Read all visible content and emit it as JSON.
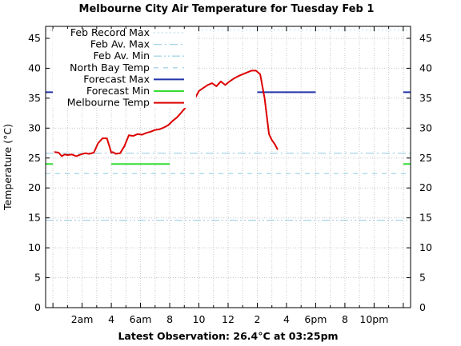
{
  "chart_data": {
    "type": "line",
    "title": "Melbourne City Air Temperature  for Tuesday Feb 1",
    "xlabel": "Latest Observation: 26.4°C at 03:25pm",
    "ylabel": "Temperature (°C)",
    "ylim": [
      0,
      47
    ],
    "xlim": [
      0,
      24
    ],
    "grid": true,
    "legend_position": "top-left",
    "y_ticks": [
      "0",
      "5",
      "10",
      "15",
      "20",
      "25",
      "30",
      "35",
      "40",
      "45"
    ],
    "x_ticks": [
      {
        "hour": 2,
        "label": "2am"
      },
      {
        "hour": 4,
        "label": "4"
      },
      {
        "hour": 6,
        "label": "6am"
      },
      {
        "hour": 8,
        "label": "8"
      },
      {
        "hour": 10,
        "label": "10"
      },
      {
        "hour": 12,
        "label": "12"
      },
      {
        "hour": 14,
        "label": "2"
      },
      {
        "hour": 16,
        "label": "4"
      },
      {
        "hour": 18,
        "label": "6pm"
      },
      {
        "hour": 20,
        "label": "8"
      },
      {
        "hour": 22,
        "label": "10pm"
      }
    ],
    "series": [
      {
        "name": "Feb Record Max",
        "kind": "hline",
        "value": 46.4,
        "color": "#bfe0ec",
        "style": "dotted"
      },
      {
        "name": "Feb Av. Max",
        "kind": "hline",
        "value": 25.8,
        "color": "#a8d4e6",
        "style": "dashdot"
      },
      {
        "name": "Feb Av. Min",
        "kind": "hline",
        "value": 14.6,
        "color": "#a8d4e6",
        "style": "dashdotdot"
      },
      {
        "name": "North Bay Temp",
        "kind": "hline",
        "value": 22.4,
        "color": "#a8d4e6",
        "style": "dashed"
      },
      {
        "name": "Forecast Max",
        "kind": "segments",
        "color": "#2233aa",
        "segments": [
          {
            "x": [
              -0.5,
              0
            ],
            "y": 36
          },
          {
            "x": [
              14,
              18
            ],
            "y": 36
          },
          {
            "x": [
              24,
              24.5
            ],
            "y": 36
          }
        ]
      },
      {
        "name": "Forecast Min",
        "kind": "segments",
        "color": "#33dd33",
        "segments": [
          {
            "x": [
              -0.5,
              0
            ],
            "y": 24
          },
          {
            "x": [
              4,
              8
            ],
            "y": 24
          },
          {
            "x": [
              24,
              24.5
            ],
            "y": 24
          }
        ]
      },
      {
        "name": "Melbourne Temp",
        "kind": "line",
        "color": "#dd0000",
        "x": [
          0.1,
          0.4,
          0.6,
          0.8,
          1.0,
          1.3,
          1.6,
          1.9,
          2.2,
          2.5,
          2.8,
          3.1,
          3.4,
          3.7,
          4.0,
          4.1,
          4.3,
          4.6,
          4.9,
          5.2,
          5.5,
          5.8,
          6.1,
          6.4,
          6.7,
          7.0,
          7.3,
          7.6,
          7.9,
          8.2,
          8.5,
          8.8,
          9.1,
          9.4,
          9.7,
          10.0,
          10.3,
          10.6,
          10.9,
          11.2,
          11.5,
          11.8,
          12.1,
          12.4,
          12.7,
          13.0,
          13.3,
          13.6,
          13.9,
          14.2,
          14.5,
          14.8,
          15.0,
          15.2,
          15.4
        ],
        "y": [
          26.0,
          25.9,
          25.3,
          25.6,
          25.5,
          25.6,
          25.3,
          25.6,
          25.8,
          25.7,
          25.9,
          27.5,
          28.3,
          28.3,
          25.9,
          26.0,
          25.7,
          25.8,
          27.0,
          28.8,
          28.7,
          29.0,
          28.9,
          29.2,
          29.4,
          29.7,
          29.8,
          30.1,
          30.5,
          31.2,
          31.8,
          32.6,
          33.5,
          33.7,
          34.8,
          36.2,
          36.7,
          37.2,
          37.5,
          37.0,
          37.8,
          37.2,
          37.8,
          38.3,
          38.7,
          39.0,
          39.3,
          39.6,
          39.6,
          39.0,
          35.0,
          29.0,
          28.0,
          27.3,
          26.4
        ]
      }
    ]
  }
}
